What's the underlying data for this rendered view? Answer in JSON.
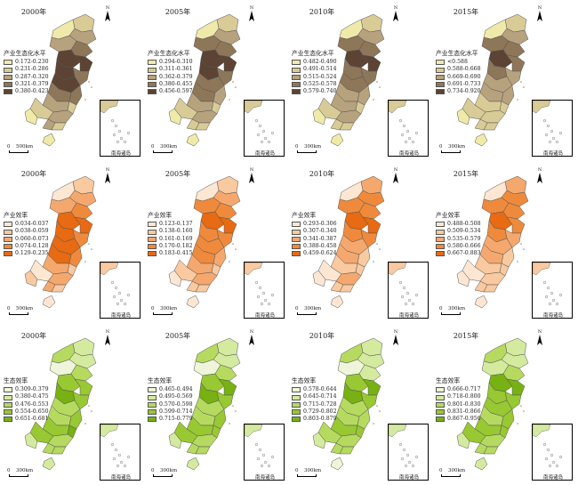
{
  "north_label": "N",
  "scale_zero": "0",
  "inset_label": "南海诸岛",
  "rows": [
    {
      "panels": [
        {
          "year": "2000年",
          "scale_km": "500km",
          "legend_title": "产业生态化水平",
          "classes": [
            "0.172-0.230",
            "0.231-0.286",
            "0.287-0.320",
            "0.321-0.379",
            "0.380-0.423"
          ],
          "colors": [
            "#efeaa9",
            "#d8cb95",
            "#b7a27e",
            "#8e7659",
            "#5c4333"
          ],
          "region_class": [
            1,
            0,
            2,
            2,
            3,
            4,
            4,
            4,
            3,
            4,
            3,
            3,
            2,
            1,
            1,
            2,
            0,
            2,
            1,
            0
          ]
        },
        {
          "year": "2005年",
          "scale_km": "300km",
          "legend_title": "产业生态化水平",
          "classes": [
            "0.294-0.310",
            "0.311-0.361",
            "0.362-0.379",
            "0.380-0.455",
            "0.456-0.597"
          ],
          "colors": [
            "#efeaa9",
            "#d8cb95",
            "#b7a27e",
            "#8e7659",
            "#5c4333"
          ],
          "region_class": [
            1,
            0,
            2,
            3,
            3,
            4,
            4,
            4,
            3,
            3,
            3,
            2,
            2,
            1,
            1,
            2,
            0,
            1,
            1,
            0
          ]
        },
        {
          "year": "2010年",
          "scale_km": "300km",
          "legend_title": "产业生态化水平",
          "classes": [
            "0.482-0.490",
            "0.491-0.514",
            "0.515-0.524",
            "0.525-0.578",
            "0.579-0.740"
          ],
          "colors": [
            "#efeaa9",
            "#d8cb95",
            "#b7a27e",
            "#8e7659",
            "#5c4333"
          ],
          "region_class": [
            1,
            0,
            2,
            3,
            3,
            4,
            4,
            3,
            3,
            3,
            2,
            2,
            2,
            1,
            1,
            2,
            0,
            1,
            1,
            0
          ]
        },
        {
          "year": "2015年",
          "scale_km": "300km",
          "legend_title": "产业生态化水平",
          "classes": [
            "<0.588",
            "0.588-0.668",
            "0.669-0.690",
            "0.691-0.733",
            "0.734-0.920"
          ],
          "colors": [
            "#efeaa9",
            "#d8cb95",
            "#b7a27e",
            "#8e7659",
            "#5c4333"
          ],
          "region_class": [
            1,
            0,
            2,
            3,
            3,
            4,
            3,
            3,
            2,
            2,
            2,
            2,
            1,
            1,
            1,
            1,
            0,
            1,
            1,
            0
          ]
        }
      ]
    },
    {
      "panels": [
        {
          "year": "2000年",
          "scale_km": "500km",
          "legend_title": "产业效率",
          "classes": [
            "0.034-0.037",
            "0.038-0.059",
            "0.060-0.073",
            "0.074-0.128",
            "0.129-0.235"
          ],
          "colors": [
            "#fde7d3",
            "#f9c9a0",
            "#f5a86d",
            "#ef8a3c",
            "#e86a12"
          ],
          "region_class": [
            1,
            0,
            2,
            2,
            3,
            4,
            4,
            4,
            3,
            4,
            4,
            3,
            2,
            1,
            0,
            2,
            1,
            2,
            1,
            0
          ]
        },
        {
          "year": "2005年",
          "scale_km": "300km",
          "legend_title": "产业效率",
          "classes": [
            "0.123-0.137",
            "0.138-0.160",
            "0.161-0.169",
            "0.170-0.182",
            "0.183-0.415"
          ],
          "colors": [
            "#fde7d3",
            "#f9c9a0",
            "#f5a86d",
            "#ef8a3c",
            "#e86a12"
          ],
          "region_class": [
            1,
            0,
            2,
            3,
            3,
            4,
            4,
            3,
            3,
            3,
            3,
            2,
            2,
            1,
            1,
            2,
            0,
            1,
            1,
            0
          ]
        },
        {
          "year": "2010年",
          "scale_km": "300km",
          "legend_title": "产业效率",
          "classes": [
            "0.293-0.306",
            "0.307-0.340",
            "0.341-0.387",
            "0.388-0.458",
            "0.459-0.624"
          ],
          "colors": [
            "#fde7d3",
            "#f9c9a0",
            "#f5a86d",
            "#ef8a3c",
            "#e86a12"
          ],
          "region_class": [
            2,
            0,
            3,
            3,
            3,
            4,
            4,
            3,
            3,
            2,
            2,
            1,
            1,
            1,
            0,
            2,
            0,
            1,
            1,
            0
          ]
        },
        {
          "year": "2015年",
          "scale_km": "300km",
          "legend_title": "产业效率",
          "classes": [
            "0.488-0.508",
            "0.509-0.534",
            "0.535-0.579",
            "0.580-0.666",
            "0.667-0.883"
          ],
          "colors": [
            "#fde7d3",
            "#f9c9a0",
            "#f5a86d",
            "#ef8a3c",
            "#e86a12"
          ],
          "region_class": [
            2,
            0,
            3,
            3,
            3,
            4,
            3,
            3,
            2,
            2,
            2,
            1,
            1,
            1,
            0,
            1,
            0,
            1,
            1,
            0
          ]
        }
      ]
    },
    {
      "panels": [
        {
          "year": "2000年",
          "scale_km": "300km",
          "legend_title": "生态效率",
          "classes": [
            "0.309-0.379",
            "0.380-0.475",
            "0.476-0.553",
            "0.554-0.650",
            "0.651-0.681"
          ],
          "colors": [
            "#eef5da",
            "#d4ea9f",
            "#b5da5f",
            "#98c832",
            "#77b112"
          ],
          "region_class": [
            1,
            2,
            1,
            0,
            2,
            3,
            3,
            4,
            3,
            2,
            2,
            3,
            3,
            4,
            3,
            2,
            1,
            2,
            2,
            1
          ]
        },
        {
          "year": "2005年",
          "scale_km": "300km",
          "legend_title": "生态效率",
          "classes": [
            "0.465-0.494",
            "0.495-0.569",
            "0.570-0.598",
            "0.599-0.714",
            "0.715-0.779"
          ],
          "colors": [
            "#eef5da",
            "#d4ea9f",
            "#b5da5f",
            "#98c832",
            "#77b112"
          ],
          "region_class": [
            1,
            2,
            1,
            0,
            2,
            3,
            4,
            4,
            3,
            2,
            2,
            3,
            3,
            3,
            3,
            2,
            1,
            2,
            2,
            1
          ]
        },
        {
          "year": "2010年",
          "scale_km": "300km",
          "legend_title": "生态效率",
          "classes": [
            "0.578-0.644",
            "0.645-0.714",
            "0.715-0.728",
            "0.729-0.802",
            "0.803-0.879"
          ],
          "colors": [
            "#eef5da",
            "#d4ea9f",
            "#b5da5f",
            "#98c832",
            "#77b112"
          ],
          "region_class": [
            1,
            2,
            1,
            0,
            1,
            3,
            4,
            4,
            3,
            2,
            2,
            2,
            3,
            3,
            2,
            2,
            1,
            2,
            2,
            0
          ]
        },
        {
          "year": "2015年",
          "scale_km": "300km",
          "legend_title": "生态效率",
          "classes": [
            "0.666-0.717",
            "0.718-0.800",
            "0.801-0.830",
            "0.831-0.866",
            "0.867-0.956"
          ],
          "colors": [
            "#eef5da",
            "#d4ea9f",
            "#b5da5f",
            "#98c832",
            "#77b112"
          ],
          "region_class": [
            1,
            2,
            1,
            1,
            2,
            4,
            4,
            3,
            3,
            3,
            2,
            3,
            3,
            3,
            3,
            2,
            1,
            2,
            2,
            1
          ]
        }
      ]
    }
  ]
}
